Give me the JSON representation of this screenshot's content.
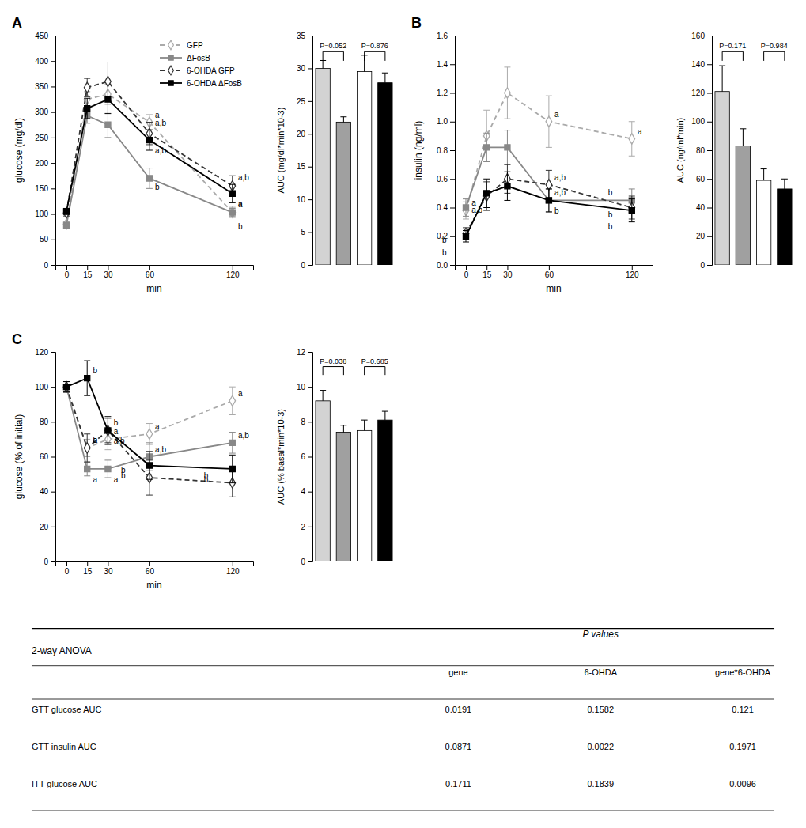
{
  "chart_data": [
    {
      "type": "line",
      "title": "A",
      "x_label": "min",
      "y_label": "glucose (mg/dl)",
      "x": [
        0,
        15,
        30,
        60,
        120
      ],
      "xlim": [
        -8,
        135
      ],
      "xticks": [
        0,
        15,
        30,
        60,
        120
      ],
      "ylim": [
        0,
        450
      ],
      "yticks": [
        0,
        50,
        100,
        150,
        200,
        250,
        300,
        350,
        400,
        450
      ],
      "grid": false,
      "legend": "upper-right",
      "series": [
        {
          "name": "GFP",
          "color": "#aaaaaa",
          "line_style": "dashed",
          "marker": "diamond-open",
          "values": [
            80,
            325,
            335,
            280,
            103
          ],
          "errors": [
            5,
            15,
            20,
            15,
            10
          ]
        },
        {
          "name": "ΔFosB",
          "color": "#888888",
          "line_style": "solid",
          "marker": "square",
          "values": [
            78,
            293,
            275,
            170,
            103
          ],
          "errors": [
            5,
            15,
            25,
            20,
            8
          ]
        },
        {
          "name": "6-OHDA GFP",
          "color": "#333333",
          "line_style": "dashed",
          "marker": "diamond-open",
          "values": [
            102,
            348,
            360,
            258,
            155
          ],
          "errors": [
            6,
            18,
            38,
            22,
            20
          ]
        },
        {
          "name": "6-OHDA ΔFosB",
          "color": "#000000",
          "line_style": "solid",
          "marker": "square",
          "values": [
            105,
            307,
            325,
            245,
            140
          ],
          "errors": [
            6,
            20,
            28,
            20,
            18
          ]
        }
      ],
      "annotations": [
        {
          "text": "a",
          "x": 60,
          "y": 280
        },
        {
          "text": "b",
          "x": 60,
          "y": 170
        },
        {
          "text": "a,b",
          "x": 60,
          "y": 258
        },
        {
          "text": "a,b",
          "x": 60,
          "y": 245
        },
        {
          "text": "a",
          "x": 120,
          "y": 103
        },
        {
          "text": "b",
          "x": 120,
          "y": 103
        },
        {
          "text": "a,b",
          "x": 120,
          "y": 155
        },
        {
          "text": "a",
          "x": 120,
          "y": 140
        }
      ]
    },
    {
      "type": "bar",
      "y_label": "AUC (mg/dl*min*10-3)",
      "categories": [
        null,
        null,
        null,
        null
      ],
      "values": [
        30.0,
        21.8,
        29.5,
        27.8
      ],
      "errors": [
        1.2,
        0.8,
        2.5,
        1.5
      ],
      "colors": [
        "#d3d3d3",
        "#a0a0a0",
        "#ffffff",
        "#000000"
      ],
      "ylim": [
        0,
        35
      ],
      "yticks": [
        0,
        5,
        10,
        15,
        20,
        25,
        30,
        35
      ],
      "grid": false,
      "tick_labels": "y",
      "annotations": [
        {
          "text": "P=0.052"
        },
        {
          "text": "P=0.876"
        }
      ]
    },
    {
      "type": "line",
      "title": "B",
      "x_label": "min",
      "y_label": "insulin (ng/ml)",
      "x": [
        0,
        15,
        30,
        60,
        120
      ],
      "xlim": [
        -8,
        135
      ],
      "xticks": [
        0,
        15,
        30,
        60,
        120
      ],
      "ylim": [
        0,
        1.6
      ],
      "yticks": [
        {
          "value": 0,
          "label": "0.0"
        },
        0.2,
        0.4,
        0.6,
        0.8,
        {
          "value": 1.0,
          "label": "1.0"
        },
        1.2,
        1.4,
        1.6
      ],
      "grid": false,
      "series": [
        {
          "name": "GFP",
          "color": "#aaaaaa",
          "line_style": "dashed",
          "marker": "diamond-open",
          "values": [
            0.38,
            0.9,
            1.2,
            1.0,
            0.88
          ],
          "errors": [
            0.06,
            0.18,
            0.18,
            0.18,
            0.12
          ]
        },
        {
          "name": "ΔFosB",
          "color": "#888888",
          "line_style": "solid",
          "marker": "square",
          "values": [
            0.4,
            0.82,
            0.82,
            0.45,
            0.45
          ],
          "errors": [
            0.06,
            0.1,
            0.12,
            0.08,
            0.08
          ]
        },
        {
          "name": "6-OHDA GFP",
          "color": "#333333",
          "line_style": "dashed",
          "marker": "diamond-open",
          "values": [
            0.22,
            0.48,
            0.6,
            0.56,
            0.4
          ],
          "errors": [
            0.04,
            0.1,
            0.1,
            0.1,
            0.08
          ]
        },
        {
          "name": "6-OHDA ΔFosB",
          "color": "#000000",
          "line_style": "solid",
          "marker": "square",
          "values": [
            0.2,
            0.5,
            0.55,
            0.45,
            0.38
          ],
          "errors": [
            0.04,
            0.1,
            0.1,
            0.08,
            0.08
          ]
        }
      ],
      "annotations": [
        {
          "text": "a",
          "x": 0,
          "y": 0.38
        },
        {
          "text": "a,b",
          "x": 0,
          "y": 0.4
        },
        {
          "text": "b",
          "x": 0,
          "y": 0.22
        },
        {
          "text": "b",
          "x": 0,
          "y": 0.2
        },
        {
          "text": "a",
          "x": 60,
          "y": 1.0
        },
        {
          "text": "a,b",
          "x": 60,
          "y": 0.45
        },
        {
          "text": "a,b",
          "x": 60,
          "y": 0.56
        },
        {
          "text": "b",
          "x": 60,
          "y": 0.45
        },
        {
          "text": "a",
          "x": 120,
          "y": 0.88
        },
        {
          "text": "b",
          "x": 120,
          "y": 0.45
        },
        {
          "text": "b",
          "x": 120,
          "y": 0.4
        },
        {
          "text": "b",
          "x": 120,
          "y": 0.38
        }
      ]
    },
    {
      "type": "bar",
      "y_label": "AUC (ng/ml*min)",
      "categories": [
        null,
        null,
        null,
        null
      ],
      "values": [
        121,
        83,
        59,
        53
      ],
      "errors": [
        18,
        12,
        8,
        7
      ],
      "colors": [
        "#d3d3d3",
        "#a0a0a0",
        "#ffffff",
        "#000000"
      ],
      "ylim": [
        0,
        160
      ],
      "yticks": [
        0,
        20,
        40,
        60,
        80,
        100,
        120,
        140,
        160
      ],
      "grid": false,
      "tick_labels": "y",
      "annotations": [
        {
          "text": "P=0.171"
        },
        {
          "text": "P=0.984"
        }
      ]
    },
    {
      "type": "line",
      "title": "C",
      "x_label": "min",
      "y_label": "glucose (% of initial)",
      "x": [
        0,
        15,
        30,
        60,
        120
      ],
      "xlim": [
        -8,
        135
      ],
      "xticks": [
        0,
        15,
        30,
        60,
        120
      ],
      "ylim": [
        0,
        120
      ],
      "yticks": [
        0,
        20,
        40,
        60,
        80,
        100,
        120
      ],
      "grid": false,
      "series": [
        {
          "name": "GFP",
          "color": "#aaaaaa",
          "line_style": "dashed",
          "marker": "diamond-open",
          "values": [
            100,
            65,
            70,
            73,
            92
          ],
          "errors": [
            3,
            5,
            6,
            6,
            8
          ]
        },
        {
          "name": "ΔFosB",
          "color": "#888888",
          "line_style": "solid",
          "marker": "square",
          "values": [
            100,
            53,
            53,
            60,
            68
          ],
          "errors": [
            3,
            4,
            5,
            8,
            6
          ]
        },
        {
          "name": "6-OHDA GFP",
          "color": "#333333",
          "line_style": "dashed",
          "marker": "diamond-open",
          "values": [
            100,
            65,
            75,
            48,
            45
          ],
          "errors": [
            3,
            8,
            7,
            10,
            8
          ]
        },
        {
          "name": "6-OHDA ΔFosB",
          "color": "#000000",
          "line_style": "solid",
          "marker": "square",
          "values": [
            100,
            105,
            75,
            55,
            53
          ],
          "errors": [
            3,
            10,
            8,
            8,
            8
          ]
        }
      ],
      "annotations": [
        {
          "text": "a",
          "x": 15,
          "y": 65
        },
        {
          "text": "a",
          "x": 15,
          "y": 53
        },
        {
          "text": "b",
          "x": 15,
          "y": 65
        },
        {
          "text": "b",
          "x": 15,
          "y": 105
        },
        {
          "text": "a",
          "x": 30,
          "y": 70
        },
        {
          "text": "a",
          "x": 30,
          "y": 53
        },
        {
          "text": "b",
          "x": 30,
          "y": 75
        },
        {
          "text": "a,b",
          "x": 30,
          "y": 75
        },
        {
          "text": "a",
          "x": 60,
          "y": 73
        },
        {
          "text": "a,b",
          "x": 60,
          "y": 60
        },
        {
          "text": "b",
          "x": 60,
          "y": 48
        },
        {
          "text": "b",
          "x": 60,
          "y": 55
        },
        {
          "text": "a",
          "x": 120,
          "y": 92
        },
        {
          "text": "a,b",
          "x": 120,
          "y": 68
        },
        {
          "text": "b",
          "x": 120,
          "y": 45
        },
        {
          "text": "b",
          "x": 120,
          "y": 53
        }
      ]
    },
    {
      "type": "bar",
      "y_label": "AUC (% basal*min*10-3)",
      "categories": [
        null,
        null,
        null,
        null
      ],
      "values": [
        9.2,
        7.4,
        7.5,
        8.1
      ],
      "errors": [
        0.6,
        0.4,
        0.6,
        0.5
      ],
      "colors": [
        "#d3d3d3",
        "#a0a0a0",
        "#ffffff",
        "#000000"
      ],
      "ylim": [
        0,
        12
      ],
      "yticks": [
        0,
        2,
        4,
        6,
        8,
        10,
        12
      ],
      "grid": false,
      "tick_labels": "y",
      "annotations": [
        {
          "text": "P=0.038"
        },
        {
          "text": "P=0.685"
        }
      ]
    },
    {
      "type": "table",
      "title": "P values",
      "subtitle": "2-way ANOVA",
      "categories": [
        "GTT glucose AUC",
        "GTT insulin AUC",
        "ITT glucose AUC"
      ],
      "series": [
        {
          "name": "gene",
          "values": [
            0.0191,
            0.0871,
            0.1711
          ]
        },
        {
          "name": "6-OHDA",
          "values": [
            0.1582,
            0.0022,
            0.1839
          ]
        },
        {
          "name": "gene*6-OHDA",
          "values": [
            0.121,
            0.1971,
            0.0096
          ]
        }
      ]
    }
  ]
}
